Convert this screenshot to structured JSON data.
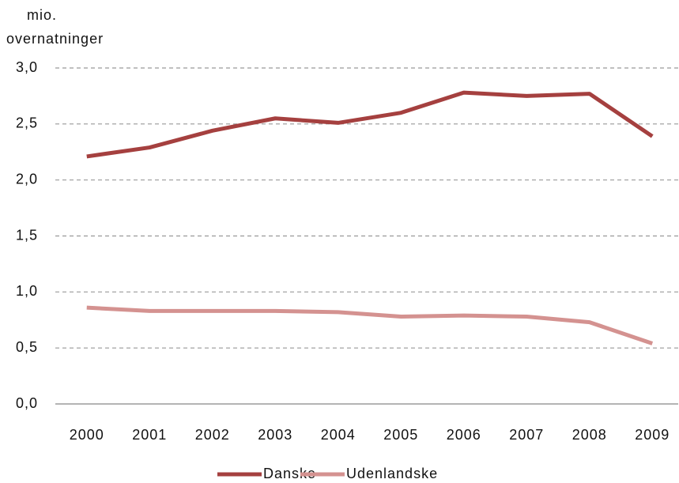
{
  "chart_data": {
    "type": "line",
    "y_label_lines": [
      "mio.",
      "overnatninger"
    ],
    "categories": [
      "2000",
      "2001",
      "2002",
      "2003",
      "2004",
      "2005",
      "2006",
      "2007",
      "2008",
      "2009"
    ],
    "series": [
      {
        "name": "Danske",
        "color": "#a5403f",
        "values": [
          2.21,
          2.29,
          2.44,
          2.55,
          2.51,
          2.6,
          2.78,
          2.75,
          2.77,
          2.39
        ]
      },
      {
        "name": "Udenlandske",
        "color": "#d49290",
        "values": [
          0.86,
          0.83,
          0.83,
          0.83,
          0.82,
          0.78,
          0.79,
          0.78,
          0.73,
          0.54
        ]
      }
    ],
    "ylim": [
      0,
      3
    ],
    "yticks": [
      {
        "value": 0,
        "label": "0,0"
      },
      {
        "value": 0.5,
        "label": "0,5"
      },
      {
        "value": 1,
        "label": "1,0"
      },
      {
        "value": 1.5,
        "label": "1,5"
      },
      {
        "value": 2,
        "label": "2,0"
      },
      {
        "value": 2.5,
        "label": "2,5"
      },
      {
        "value": 3,
        "label": "3,0"
      }
    ],
    "grid": true,
    "legend": "bottom"
  }
}
